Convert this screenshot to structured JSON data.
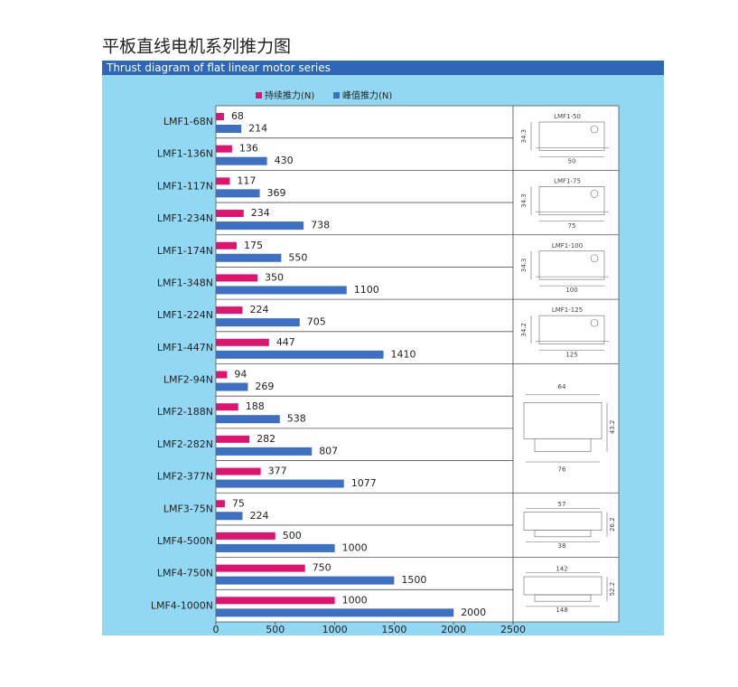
{
  "chart_data": {
    "type": "bar",
    "title": "平板直线电机系列推力图",
    "subtitle": "Thrust diagram of flat linear motor series",
    "categories": [
      "LMF1-68N",
      "LMF1-136N",
      "LMF1-117N",
      "LMF1-234N",
      "LMF1-174N",
      "LMF1-348N",
      "LMF1-224N",
      "LMF1-447N",
      "LMF2-94N",
      "LMF2-188N",
      "LMF2-282N",
      "LMF2-377N",
      "LMF3-75N",
      "LMF4-500N",
      "LMF4-750N",
      "LMF4-1000N"
    ],
    "series": [
      {
        "name": "持续推力(N)",
        "color": "#e0146f",
        "values": [
          68,
          136,
          117,
          234,
          175,
          350,
          224,
          447,
          94,
          188,
          282,
          377,
          75,
          500,
          750,
          1000
        ]
      },
      {
        "name": "峰值推力(N)",
        "color": "#3d6fc2",
        "values": [
          214,
          430,
          369,
          738,
          550,
          1100,
          705,
          1410,
          269,
          538,
          807,
          1077,
          224,
          1000,
          1500,
          2000
        ]
      }
    ],
    "xlim": [
      0,
      2500
    ],
    "xticks": [
      0,
      500,
      1000,
      1500,
      2000,
      2500
    ],
    "orientation": "horizontal"
  },
  "diagrams": [
    {
      "name": "LMF1-50",
      "height": 34.3,
      "width": 50
    },
    {
      "name": "LMF1-75",
      "height": 34.3,
      "width": 75
    },
    {
      "name": "LMF1-100",
      "height": 34.3,
      "width": 100
    },
    {
      "name": "LMF1-125",
      "height": 34.2,
      "width": 125
    },
    {
      "top": 64,
      "height": 43.2,
      "bottom": 76
    },
    {
      "top": 57,
      "height": 26.2,
      "bottom": 38
    },
    {
      "top": 142,
      "height": 52.2,
      "bottom": 148
    }
  ]
}
